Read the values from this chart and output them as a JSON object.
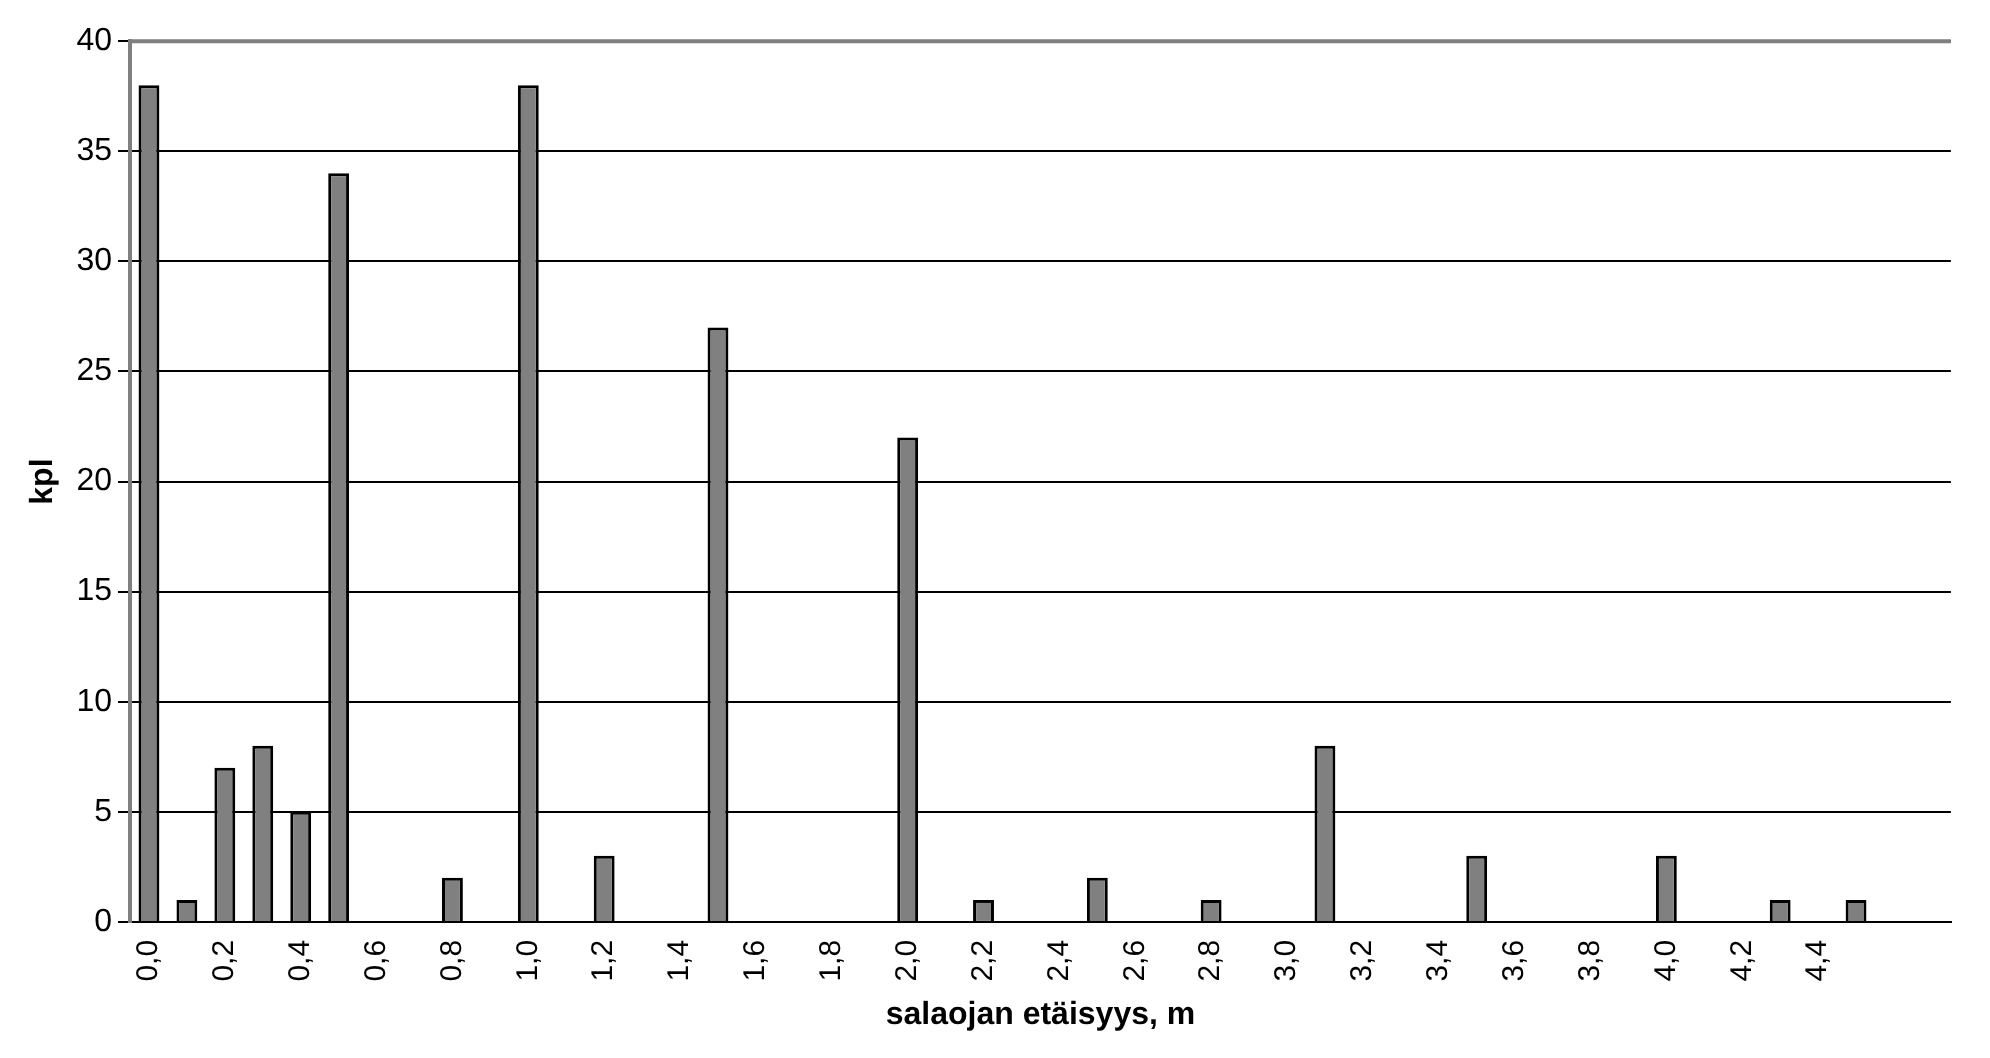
{
  "chart_data": {
    "type": "bar",
    "xlabel": "salaojan etäisyys, m",
    "ylabel": "kpl",
    "categories": [
      "0,0",
      null,
      "0,2",
      null,
      "0,4",
      null,
      "0,6",
      null,
      "0,8",
      null,
      "1,0",
      null,
      "1,2",
      null,
      "1,4",
      null,
      "1,6",
      null,
      "1,8",
      null,
      "2,0",
      null,
      "2,2",
      null,
      "2,4",
      null,
      "2,6",
      null,
      "2,8",
      null,
      "3,0",
      null,
      "3,2",
      null,
      "3,4",
      null,
      "3,6",
      null,
      "3,8",
      null,
      "4,0",
      null,
      "4,2",
      null,
      "4,4",
      null,
      null,
      null
    ],
    "values": [
      38,
      1,
      7,
      8,
      5,
      34,
      0,
      0,
      2,
      0,
      38,
      0,
      3,
      0,
      0,
      27,
      0,
      0,
      0,
      0,
      22,
      0,
      1,
      0,
      0,
      2,
      0,
      0,
      1,
      0,
      0,
      8,
      0,
      0,
      0,
      3,
      0,
      0,
      0,
      0,
      3,
      0,
      0,
      1,
      0,
      1,
      0,
      0
    ],
    "color": "#808080",
    "ylim": [
      0,
      40
    ],
    "yticks": [
      0,
      5,
      10,
      15,
      20,
      25,
      30,
      35,
      40
    ],
    "grid": "y",
    "legend": false
  }
}
